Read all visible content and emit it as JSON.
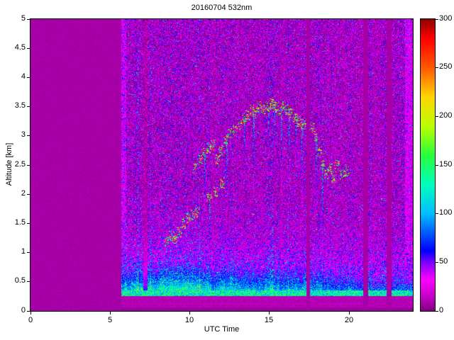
{
  "chart_data": {
    "type": "heatmap",
    "title": "20160704 532nm",
    "xlabel": "UTC Time",
    "ylabel": "Altitude [km]",
    "x_range": [
      0,
      24
    ],
    "y_range": [
      0,
      5
    ],
    "x_ticks": [
      "0",
      "5",
      "10",
      "15",
      "20"
    ],
    "y_ticks": [
      "0",
      "0.5",
      "1",
      "1.5",
      "2",
      "2.5",
      "3",
      "3.5",
      "4",
      "4.5",
      "5"
    ],
    "colorbar": {
      "range": [
        0,
        300
      ],
      "ticks": [
        "0",
        "50",
        "100",
        "150",
        "200",
        "250",
        "300"
      ]
    },
    "colormap_stops": [
      [
        0,
        [
          128,
          0,
          128
        ]
      ],
      [
        15,
        [
          200,
          0,
          200
        ]
      ],
      [
        32,
        [
          255,
          0,
          255
        ]
      ],
      [
        48,
        [
          140,
          0,
          255
        ]
      ],
      [
        62,
        [
          0,
          0,
          255
        ]
      ],
      [
        100,
        [
          0,
          190,
          255
        ]
      ],
      [
        130,
        [
          0,
          255,
          190
        ]
      ],
      [
        160,
        [
          40,
          255,
          60
        ]
      ],
      [
        190,
        [
          190,
          255,
          0
        ]
      ],
      [
        220,
        [
          255,
          215,
          0
        ]
      ],
      [
        250,
        [
          255,
          90,
          0
        ]
      ],
      [
        280,
        [
          255,
          0,
          0
        ]
      ],
      [
        300,
        [
          140,
          0,
          0
        ]
      ]
    ],
    "data_start_time": 5.7,
    "gaps": [
      [
        17.3,
        17.55
      ],
      [
        20.9,
        21.2
      ],
      [
        22.35,
        22.65
      ]
    ],
    "bright_columns": [
      [
        5.72,
        6.0
      ],
      [
        23.5,
        23.95
      ]
    ],
    "dark_columns": [
      [
        7.1,
        7.35
      ]
    ],
    "surface_band": {
      "altitude": 0.3,
      "thickness": 0.1,
      "value": 130
    },
    "boundary_layer": {
      "base_amp": 55,
      "morning_amp": 45,
      "morning_center": 9,
      "morning_width": 4,
      "afternoon_amp": 25,
      "afternoon_center": 16,
      "afternoon_width": 4,
      "scale_height": 0.38
    },
    "cloud_points": [
      [
        8.55,
        1.2
      ],
      [
        8.8,
        1.3
      ],
      [
        9.05,
        1.25
      ],
      [
        9.3,
        1.35
      ],
      [
        9.6,
        1.5
      ],
      [
        9.9,
        1.6
      ],
      [
        10.15,
        1.65
      ],
      [
        10.45,
        1.7
      ],
      [
        10.3,
        2.45
      ],
      [
        10.6,
        2.6
      ],
      [
        10.9,
        2.7
      ],
      [
        11.15,
        2.8
      ],
      [
        11.4,
        2.85
      ],
      [
        11.7,
        2.6
      ],
      [
        11.95,
        2.75
      ],
      [
        11.2,
        1.95
      ],
      [
        11.6,
        2.05
      ],
      [
        12.0,
        2.2
      ],
      [
        12.2,
        2.95
      ],
      [
        12.5,
        3.05
      ],
      [
        12.8,
        3.1
      ],
      [
        13.1,
        3.2
      ],
      [
        13.35,
        3.3
      ],
      [
        13.6,
        3.35
      ],
      [
        13.85,
        3.45
      ],
      [
        14.1,
        3.4
      ],
      [
        14.35,
        3.5
      ],
      [
        14.6,
        3.45
      ],
      [
        14.85,
        3.5
      ],
      [
        15.1,
        3.55
      ],
      [
        15.35,
        3.5
      ],
      [
        15.6,
        3.45
      ],
      [
        15.85,
        3.5
      ],
      [
        16.1,
        3.45
      ],
      [
        16.35,
        3.4
      ],
      [
        16.6,
        3.3
      ],
      [
        16.85,
        3.25
      ],
      [
        17.1,
        3.2
      ],
      [
        17.65,
        3.15
      ],
      [
        17.9,
        3.0
      ],
      [
        18.1,
        2.75
      ],
      [
        18.3,
        2.5
      ],
      [
        18.55,
        2.35
      ],
      [
        18.8,
        2.45
      ],
      [
        19.0,
        2.3
      ],
      [
        19.2,
        2.5
      ],
      [
        19.5,
        2.35
      ],
      [
        19.8,
        2.4
      ]
    ],
    "virga_times": [
      10.9,
      11.2,
      12.3,
      13.4,
      14.0,
      14.9,
      15.3,
      15.7,
      16.2,
      16.6,
      17.0,
      17.9,
      18.3
    ],
    "seed": 20160704
  }
}
